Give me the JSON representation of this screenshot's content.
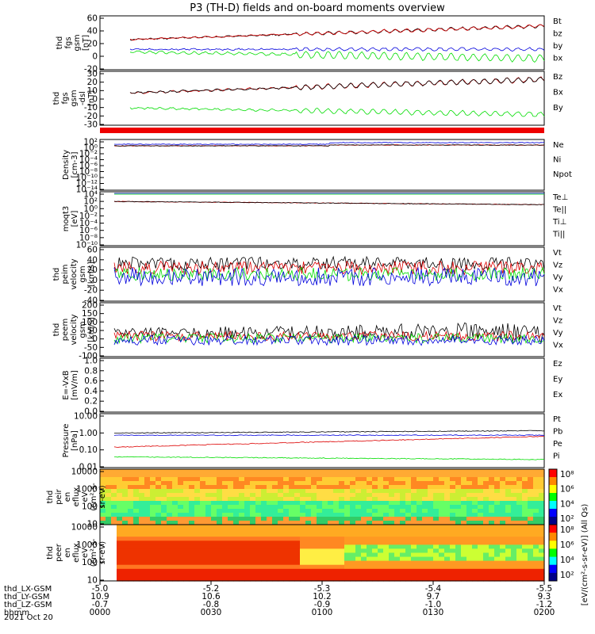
{
  "title": "P3 (TH-D) fields and on-board moments overview",
  "colors": {
    "black": "#000000",
    "red": "#dd0000",
    "green": "#00dd00",
    "blue": "#0000dd"
  },
  "chart_data": [
    {
      "type": "line",
      "id": "fgs",
      "ylabel": [
        "thd",
        "fgs",
        "gsm",
        "[nT]"
      ],
      "yticks": [
        "60",
        "40",
        "20",
        "0",
        "-20"
      ],
      "ylim": [
        -20,
        60
      ],
      "series": [
        {
          "name": "Bt",
          "color": "black"
        },
        {
          "name": "bz",
          "color": "red"
        },
        {
          "name": "by",
          "color": "green"
        },
        {
          "name": "bx",
          "color": "blue"
        }
      ]
    },
    {
      "type": "line",
      "id": "fgs_dsl",
      "ylabel": [
        "thd",
        "fgs",
        "gsm",
        "-dsl",
        "[nT]"
      ],
      "yticks": [
        "30",
        "20",
        "10",
        "0",
        "-10",
        "-20",
        "-30"
      ],
      "ylim": [
        -30,
        30
      ],
      "series": [
        {
          "name": "Bz",
          "color": "red"
        },
        {
          "name": "Bx",
          "color": "black"
        },
        {
          "name": "By",
          "color": "green"
        }
      ]
    },
    {
      "type": "line",
      "id": "density",
      "log": true,
      "ylabel": [
        "Density",
        "[cm-3]"
      ],
      "yticks": [
        "10²",
        "10⁰",
        "10⁻²",
        "10⁻⁴",
        "10⁻⁶",
        "10⁻⁸",
        "10⁻¹⁰",
        "10⁻¹²",
        "10⁻¹⁴"
      ],
      "series": [
        {
          "name": "Ne",
          "color": "red"
        },
        {
          "name": "Ni",
          "color": "black"
        },
        {
          "name": "Npot",
          "color": "blue"
        }
      ]
    },
    {
      "type": "line",
      "id": "temperature",
      "log": true,
      "ylabel": [
        "moqt3",
        "[eV]"
      ],
      "yticks": [
        "10⁴",
        "10²",
        "10⁰",
        "10⁻²",
        "10⁻⁴",
        "10⁻⁶",
        "10⁻⁸",
        "10⁻¹⁰"
      ],
      "series": [
        {
          "name": "Te⊥",
          "color": "red"
        },
        {
          "name": "Te||",
          "color": "black"
        },
        {
          "name": "Ti⊥",
          "color": "blue"
        },
        {
          "name": "Ti||",
          "color": "green"
        }
      ]
    },
    {
      "type": "line",
      "id": "peim_velocity",
      "ylabel": [
        "thd",
        "peim",
        "velocity",
        "gsm",
        "[km/s]"
      ],
      "yticks": [
        "60",
        "40",
        "20",
        "0",
        "-20",
        "-40"
      ],
      "ylim": [
        -40,
        60
      ],
      "series": [
        {
          "name": "Vt",
          "color": "black"
        },
        {
          "name": "Vz",
          "color": "red"
        },
        {
          "name": "Vy",
          "color": "green"
        },
        {
          "name": "Vx",
          "color": "blue"
        }
      ]
    },
    {
      "type": "line",
      "id": "peem_velocity",
      "ylabel": [
        "thd",
        "peem",
        "velocity",
        "gsm",
        "[km/s]"
      ],
      "yticks": [
        "200",
        "150",
        "100",
        "50",
        "0",
        "-50",
        "-100"
      ],
      "ylim": [
        -100,
        200
      ],
      "series": [
        {
          "name": "Vt",
          "color": "black"
        },
        {
          "name": "Vz",
          "color": "red"
        },
        {
          "name": "Vy",
          "color": "green"
        },
        {
          "name": "Vx",
          "color": "blue"
        }
      ]
    },
    {
      "type": "line",
      "id": "efield",
      "ylabel": [
        "E=-VxB",
        "[mV/m]"
      ],
      "yticks": [
        "1.0",
        "0.8",
        "0.6",
        "0.4",
        "0.2",
        "0.0"
      ],
      "ylim": [
        0,
        1
      ],
      "series": [
        {
          "name": "Ez",
          "color": "red"
        },
        {
          "name": "Ey",
          "color": "green"
        },
        {
          "name": "Ex",
          "color": "blue"
        }
      ]
    },
    {
      "type": "line",
      "id": "pressure",
      "log": true,
      "ylabel": [
        "Pressure",
        "[nPa]"
      ],
      "yticks": [
        "10.00",
        "1.00",
        "0.10",
        "0.01"
      ],
      "series": [
        {
          "name": "Pt",
          "color": "black"
        },
        {
          "name": "Pb",
          "color": "red"
        },
        {
          "name": "Pe",
          "color": "green"
        },
        {
          "name": "Pi",
          "color": "blue"
        }
      ]
    },
    {
      "type": "heatmap",
      "id": "peir",
      "ylabel": [
        "thd",
        "peir",
        "en",
        "eflux",
        "eV",
        "(cm²-s-",
        "sr-eV)"
      ],
      "yticks": [
        "10000",
        "1000",
        "100",
        "10"
      ],
      "colorbar_ticks": [
        "10⁸",
        "10⁶",
        "10⁴",
        "10²"
      ],
      "colorbar_label": "[eV/(cm²-s-sr-eV)] (All Qs)"
    },
    {
      "type": "heatmap",
      "id": "peer",
      "ylabel": [
        "thd",
        "peer",
        "en",
        "eflux",
        "eV",
        "(cm²-s-",
        "sr-eV)"
      ],
      "yticks": [
        "10000",
        "1000",
        "100",
        "10"
      ],
      "colorbar_ticks": [
        "10⁸",
        "10⁶",
        "10⁴",
        "10²"
      ],
      "colorbar_label": "[eV/(cm²-s-sr-eV)] (All Qs)"
    }
  ],
  "xaxis": {
    "rows": [
      {
        "label": "thd_LX-GSM",
        "values": [
          "-5.0",
          "-5.2",
          "-5.3",
          "-5.4",
          "-5.5"
        ]
      },
      {
        "label": "thd_LY-GSM",
        "values": [
          "10.9",
          "10.6",
          "10.2",
          "9.7",
          "9.3"
        ]
      },
      {
        "label": "thd_LZ-GSM",
        "values": [
          "-0.7",
          "-0.8",
          "-0.9",
          "-1.0",
          "-1.2"
        ]
      },
      {
        "label": "hhmm",
        "values": [
          "0000",
          "0030",
          "0100",
          "0130",
          "0200"
        ]
      }
    ],
    "date": "2021 Oct 20"
  }
}
